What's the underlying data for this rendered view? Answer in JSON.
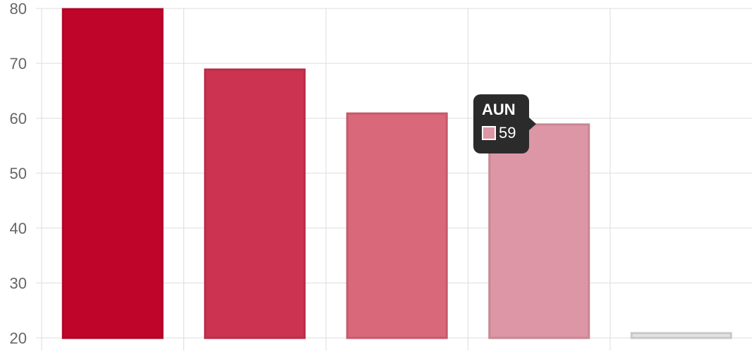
{
  "chart_data": {
    "type": "bar",
    "categories": [
      "",
      "",
      "",
      "",
      ""
    ],
    "values": [
      80,
      69,
      61,
      59,
      21
    ],
    "ylim": [
      20,
      80
    ],
    "y_ticks": [
      "80",
      "70",
      "60",
      "50",
      "40",
      "30",
      "20"
    ],
    "grid": true,
    "bar_colors": [
      "#c0052a",
      "#cc3350",
      "#d9687a",
      "#dc96a5",
      "#e3e3e3"
    ],
    "bar_border_colors": [
      "#b00528",
      "#b82d48",
      "#c55a6b",
      "#c98694",
      "#c8c8c8"
    ],
    "grid_color": "#dddddd",
    "tick_label_color": "#666666"
  },
  "tooltip": {
    "title": "AUN",
    "value": "59",
    "swatch_color": "#dc96a5"
  }
}
